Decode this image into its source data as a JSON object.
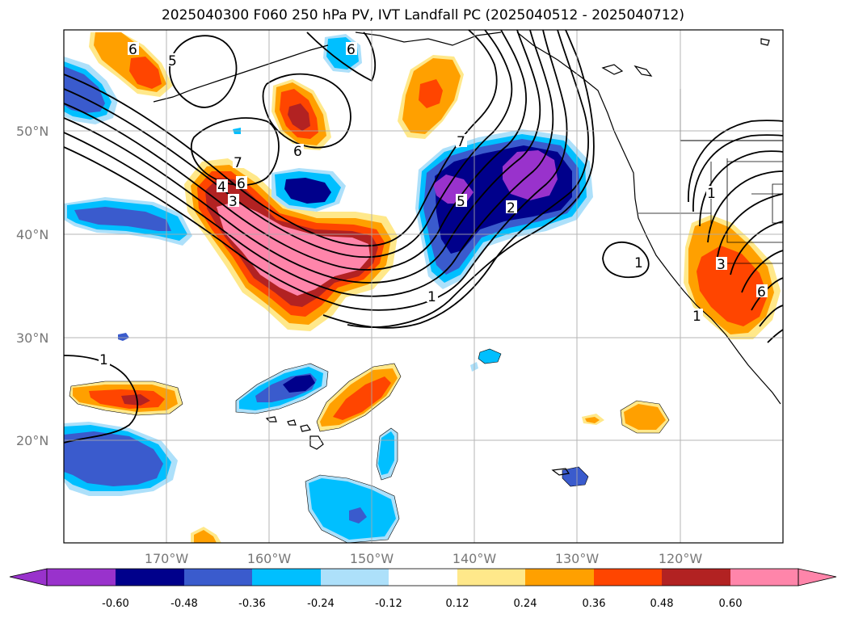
{
  "title": "2025040300 F060 250 hPa PV, IVT Landfall PC (2025040512 - 2025040712)",
  "lat_labels": [
    "50°N",
    "40°N",
    "30°N",
    "20°N"
  ],
  "lon_labels": [
    "170°W",
    "160°W",
    "150°W",
    "140°W",
    "130°W",
    "120°W"
  ],
  "contour_labels": [
    "5",
    "6",
    "6",
    "6",
    "7",
    "4",
    "3",
    "6",
    "5",
    "2",
    "7",
    "1",
    "1",
    "1",
    "3",
    "6",
    "1",
    "1"
  ],
  "colorbar": {
    "tick_labels": [
      "-0.60",
      "-0.48",
      "-0.36",
      "-0.24",
      "-0.12",
      "0.12",
      "0.24",
      "0.36",
      "0.48",
      "0.60"
    ],
    "colors": [
      "#9932cc",
      "#00008b",
      "#3a5bcd",
      "#00bfff",
      "#ade0fa",
      "#ffffff",
      "#ffe88a",
      "#ffa000",
      "#ff4500",
      "#b22222",
      "#ff85aa",
      "#ff85aa"
    ]
  }
}
